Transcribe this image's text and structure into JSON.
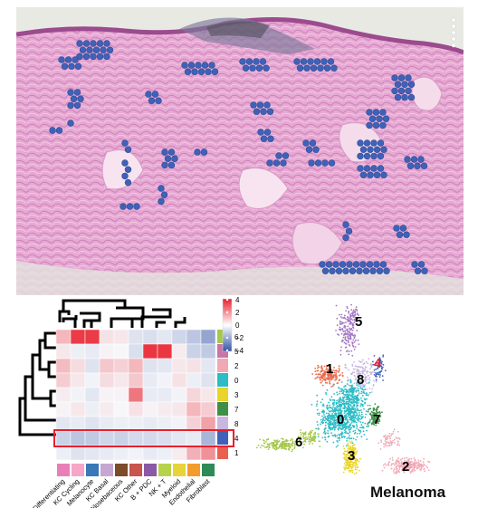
{
  "heatmap": {
    "legend_ticks": [
      "4",
      "2",
      "0",
      "−2",
      "−4"
    ],
    "columns": [
      "KC Differentiating",
      "KC Cycling",
      "Melanocyte",
      "KC Basal",
      "Pilosebaceous",
      "KC Other",
      "B + PDC",
      "NK + T",
      "Myeloid",
      "Endothelial",
      "Fibroblast"
    ],
    "column_colors": [
      "#e97fb9",
      "#f6a6c8",
      "#3a78b7",
      "#c7a6d1",
      "#7b4b2a",
      "#c9554d",
      "#8a5aa6",
      "#b7d24b",
      "#e8d33b",
      "#f39c2b",
      "#2e8b57"
    ],
    "rows": [
      "6",
      "5",
      "2",
      "0",
      "3",
      "7",
      "8",
      "4",
      "1"
    ],
    "row_colors": [
      "#a5c84a",
      "#c874a8",
      "#f0a8b5",
      "#2bbcc5",
      "#ead32a",
      "#3f8f47",
      "#c9b7e0",
      "#3f62b8",
      "#e9604f"
    ],
    "values": [
      [
        1.2,
        3.5,
        3.5,
        0.4,
        0.3,
        -0.5,
        -0.6,
        -0.4,
        -0.8,
        -1.2,
        -2.0
      ],
      [
        0.3,
        -0.2,
        -0.3,
        0.1,
        0.0,
        -0.6,
        3.6,
        3.6,
        0.2,
        -0.9,
        -1.1
      ],
      [
        1.1,
        0.5,
        -0.5,
        0.9,
        0.7,
        1.2,
        -0.5,
        -0.4,
        0.3,
        0.4,
        -0.4
      ],
      [
        0.8,
        0.3,
        -0.1,
        0.5,
        0.3,
        0.9,
        -0.3,
        -0.1,
        0.4,
        -0.2,
        -0.5
      ],
      [
        0.2,
        -0.1,
        -0.4,
        0.1,
        0.1,
        2.4,
        -0.3,
        -0.3,
        -0.1,
        0.6,
        0.3
      ],
      [
        0.1,
        0.3,
        -0.2,
        0.2,
        0.0,
        0.4,
        0.1,
        0.2,
        0.3,
        1.2,
        0.8
      ],
      [
        -0.4,
        -0.3,
        -0.5,
        -0.3,
        -0.2,
        -0.2,
        -0.3,
        -0.2,
        -0.1,
        0.7,
        1.6
      ],
      [
        -0.9,
        -1.2,
        -1.1,
        -0.8,
        -0.9,
        -0.7,
        -0.7,
        -0.6,
        -0.4,
        -0.3,
        -1.6
      ],
      [
        -0.2,
        -0.5,
        -0.4,
        -0.3,
        -0.2,
        -0.1,
        -0.3,
        -0.2,
        0.2,
        1.3,
        1.9
      ]
    ],
    "highlighted_row": "4"
  },
  "umap": {
    "clusters": [
      {
        "label": "5",
        "color": "#a276c4"
      },
      {
        "label": "1",
        "color": "#ea6a4c"
      },
      {
        "label": "8",
        "color": "#c9b7e0"
      },
      {
        "label": "4",
        "color": "#3f62b8"
      },
      {
        "label": "0",
        "color": "#2bbcc5"
      },
      {
        "label": "7",
        "color": "#3f8f47"
      },
      {
        "label": "6",
        "color": "#a5c84a"
      },
      {
        "label": "3",
        "color": "#ead32a"
      },
      {
        "label": "2",
        "color": "#f0a8b5"
      }
    ],
    "title": "Melanoma"
  }
}
